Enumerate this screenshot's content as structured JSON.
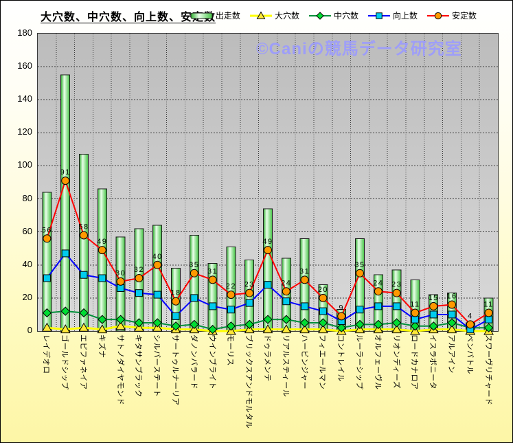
{
  "title": "大穴数、中穴数、向上数、安定数",
  "watermark": "©Caniの競馬データ研究室",
  "colors": {
    "background_top": "#ffffff",
    "background_bottom": "#fdf6a6",
    "plot_bg_top": "#bcbcbc",
    "plot_bg_bottom": "#d9d9d9",
    "gridline": "#3c3c3c",
    "bar_edge_green": "#2fae2f",
    "bar_highlight": "#eaffea",
    "bar_border": "#1b1b1b",
    "line_yellow": "#ffff00",
    "line_green": "#008f39",
    "line_blue": "#0000ff",
    "line_red": "#ff0000",
    "marker_triangle": "#ffe838",
    "marker_diamond": "#00dd33",
    "marker_square": "#00ccee",
    "marker_circle": "#ff9900",
    "data_label": "#000000",
    "watermark": "#9b9bff"
  },
  "chart_data": {
    "type": "bar",
    "subtype": "bar-line-combo",
    "title": "大穴数、中穴数、向上数、安定数",
    "xlabel": "",
    "ylabel": "",
    "ylim": [
      0,
      180
    ],
    "ytick_step": 20,
    "grid": true,
    "legend_position": "top",
    "categories": [
      "レイデオロ",
      "ゴールドシップ",
      "エピファネイア",
      "キズナ",
      "サトノダイヤモンド",
      "キタサンブラック",
      "シルバーステート",
      "サートゥルナーリア",
      "ダノンバラード",
      "ウインブライト",
      "モーリス",
      "ブリックスアンドモルタル",
      "ドゥラメンテ",
      "リアルスティール",
      "ハービンジャー",
      "フィエールマン",
      "コントレイル",
      "ルーラーシップ",
      "オルフェーヴル",
      "リオンディーズ",
      "ロードカナロア",
      "イスラボニータ",
      "アルアイン",
      "ベンバトル",
      "スワーヴリチャード"
    ],
    "series": [
      {
        "name": "出走数",
        "type": "bar",
        "marker": "bar",
        "values": [
          84,
          155,
          107,
          86,
          57,
          62,
          64,
          38,
          58,
          41,
          51,
          43,
          74,
          44,
          56,
          28,
          13,
          56,
          34,
          37,
          31,
          22,
          23,
          5,
          20
        ]
      },
      {
        "name": "大穴数",
        "type": "line",
        "marker": "triangle",
        "line_color": "#ffff00",
        "marker_color": "#ffe838",
        "line_width": 3,
        "values": [
          2,
          1,
          2,
          1,
          3,
          2,
          2,
          1,
          1,
          0,
          0,
          1,
          1,
          1,
          1,
          1,
          0,
          1,
          1,
          1,
          0,
          1,
          1,
          0,
          0
        ]
      },
      {
        "name": "中穴数",
        "type": "line",
        "marker": "diamond",
        "line_color": "#008f39",
        "marker_color": "#00dd33",
        "line_width": 2,
        "values": [
          11,
          12,
          11,
          7,
          7,
          5,
          5,
          3,
          4,
          1,
          3,
          4,
          7,
          7,
          5,
          5,
          2,
          4,
          4,
          5,
          3,
          3,
          5,
          2,
          2
        ]
      },
      {
        "name": "向上数",
        "type": "line",
        "marker": "square",
        "line_color": "#0000ff",
        "marker_color": "#00ccee",
        "line_width": 2,
        "values": [
          32,
          47,
          34,
          32,
          26,
          23,
          22,
          9,
          20,
          15,
          13,
          17,
          28,
          18,
          15,
          12,
          6,
          13,
          15,
          15,
          7,
          10,
          10,
          1,
          7
        ]
      },
      {
        "name": "安定数",
        "type": "line",
        "marker": "circle",
        "line_color": "#ff0000",
        "marker_color": "#ff9900",
        "line_width": 2,
        "data_labels": true,
        "values": [
          56,
          91,
          58,
          49,
          30,
          32,
          40,
          18,
          35,
          31,
          22,
          23,
          49,
          24,
          31,
          20,
          9,
          35,
          24,
          23,
          11,
          15,
          16,
          4,
          11
        ]
      }
    ]
  }
}
